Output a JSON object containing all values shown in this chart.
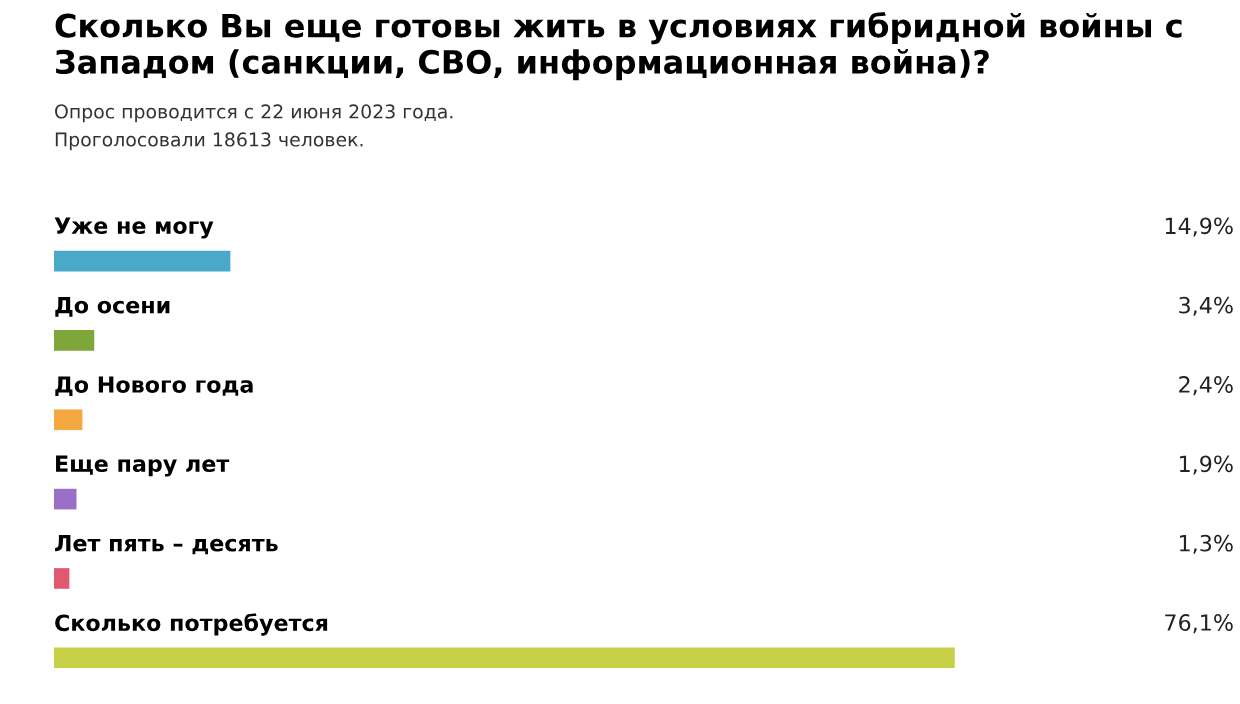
{
  "chart_data": {
    "type": "bar",
    "orientation": "horizontal",
    "title": "Сколько Вы еще готовы жить в условиях гибридной войны с Западом (санкции, СВО, информационная война)?",
    "annotations": [
      "Опрос проводится с 22 июня 2023 года.",
      "Проголосовали 18613 человек."
    ],
    "categories": [
      "Уже не могу",
      "До осени",
      "До Нового года",
      "Еще пару лет",
      "Лет пять – десять",
      "Сколько потребуется"
    ],
    "values": [
      14.9,
      3.4,
      2.4,
      1.9,
      1.3,
      76.1
    ],
    "value_labels": [
      "14,9%",
      "3,4%",
      "2,4%",
      "1,9%",
      "1,3%",
      "76,1%"
    ],
    "colors": [
      "#4aa8c8",
      "#7fa63a",
      "#f5a742",
      "#9a6fc8",
      "#e0596f",
      "#c8d048"
    ],
    "legend": false
  }
}
